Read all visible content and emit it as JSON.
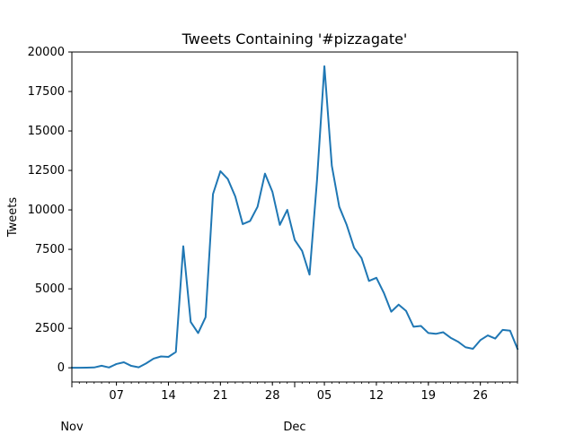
{
  "chart_data": {
    "type": "line",
    "title": "Tweets Containing '#pizzagate'",
    "xlabel": "",
    "ylabel": "Tweets",
    "ylim": [
      -900,
      20000
    ],
    "xlim": [
      "2016-11-01",
      "2016-12-31"
    ],
    "grid": false,
    "legend": "none",
    "series_color": "#1f77b4",
    "y_ticks": [
      0,
      2500,
      5000,
      7500,
      10000,
      12500,
      15000,
      17500,
      20000
    ],
    "y_tick_labels": [
      "0",
      "2500",
      "5000",
      "7500",
      "10000",
      "12500",
      "15000",
      "17500",
      "20000"
    ],
    "x_major_ticks": [
      {
        "date": "2016-11-07",
        "label": "07"
      },
      {
        "date": "2016-11-14",
        "label": "14"
      },
      {
        "date": "2016-11-21",
        "label": "21"
      },
      {
        "date": "2016-11-28",
        "label": "28"
      },
      {
        "date": "2016-12-05",
        "label": "05"
      },
      {
        "date": "2016-12-12",
        "label": "12"
      },
      {
        "date": "2016-12-19",
        "label": "19"
      },
      {
        "date": "2016-12-26",
        "label": "26"
      }
    ],
    "x_month_labels": [
      {
        "date": "2016-11-01",
        "label": "Nov"
      },
      {
        "date": "2016-12-01",
        "label": "Dec"
      }
    ],
    "series": [
      {
        "x": [
          "2016-11-01",
          "2016-11-02",
          "2016-11-03",
          "2016-11-04",
          "2016-11-05",
          "2016-11-06",
          "2016-11-07",
          "2016-11-08",
          "2016-11-09",
          "2016-11-10",
          "2016-11-11",
          "2016-11-12",
          "2016-11-13",
          "2016-11-14",
          "2016-11-15",
          "2016-11-16",
          "2016-11-17",
          "2016-11-18",
          "2016-11-19",
          "2016-11-20",
          "2016-11-21",
          "2016-11-22",
          "2016-11-23",
          "2016-11-24",
          "2016-11-25",
          "2016-11-26",
          "2016-11-27",
          "2016-11-28",
          "2016-11-29",
          "2016-11-30",
          "2016-12-01",
          "2016-12-02",
          "2016-12-03",
          "2016-12-04",
          "2016-12-05",
          "2016-12-06",
          "2016-12-07",
          "2016-12-08",
          "2016-12-09",
          "2016-12-10",
          "2016-12-11",
          "2016-12-12",
          "2016-12-13",
          "2016-12-14",
          "2016-12-15",
          "2016-12-16",
          "2016-12-17",
          "2016-12-18",
          "2016-12-19",
          "2016-12-20",
          "2016-12-21",
          "2016-12-22",
          "2016-12-23",
          "2016-12-24",
          "2016-12-25",
          "2016-12-26",
          "2016-12-27",
          "2016-12-28",
          "2016-12-29",
          "2016-12-30",
          "2016-12-31"
        ],
        "y": [
          0,
          0,
          10,
          20,
          130,
          20,
          240,
          350,
          120,
          30,
          280,
          580,
          720,
          690,
          1000,
          7700,
          2900,
          2200,
          3200,
          11000,
          12450,
          11950,
          10850,
          9100,
          9300,
          10200,
          12300,
          11150,
          9050,
          10000,
          8100,
          7400,
          5900,
          11850,
          19100,
          12800,
          10200,
          9050,
          7600,
          6950,
          5500,
          5700,
          4750,
          3550,
          4000,
          3600,
          2600,
          2650,
          2200,
          2150,
          2250,
          1900,
          1650,
          1300,
          1200,
          1750,
          2050,
          1850,
          2400,
          2350,
          1200
        ]
      }
    ]
  }
}
